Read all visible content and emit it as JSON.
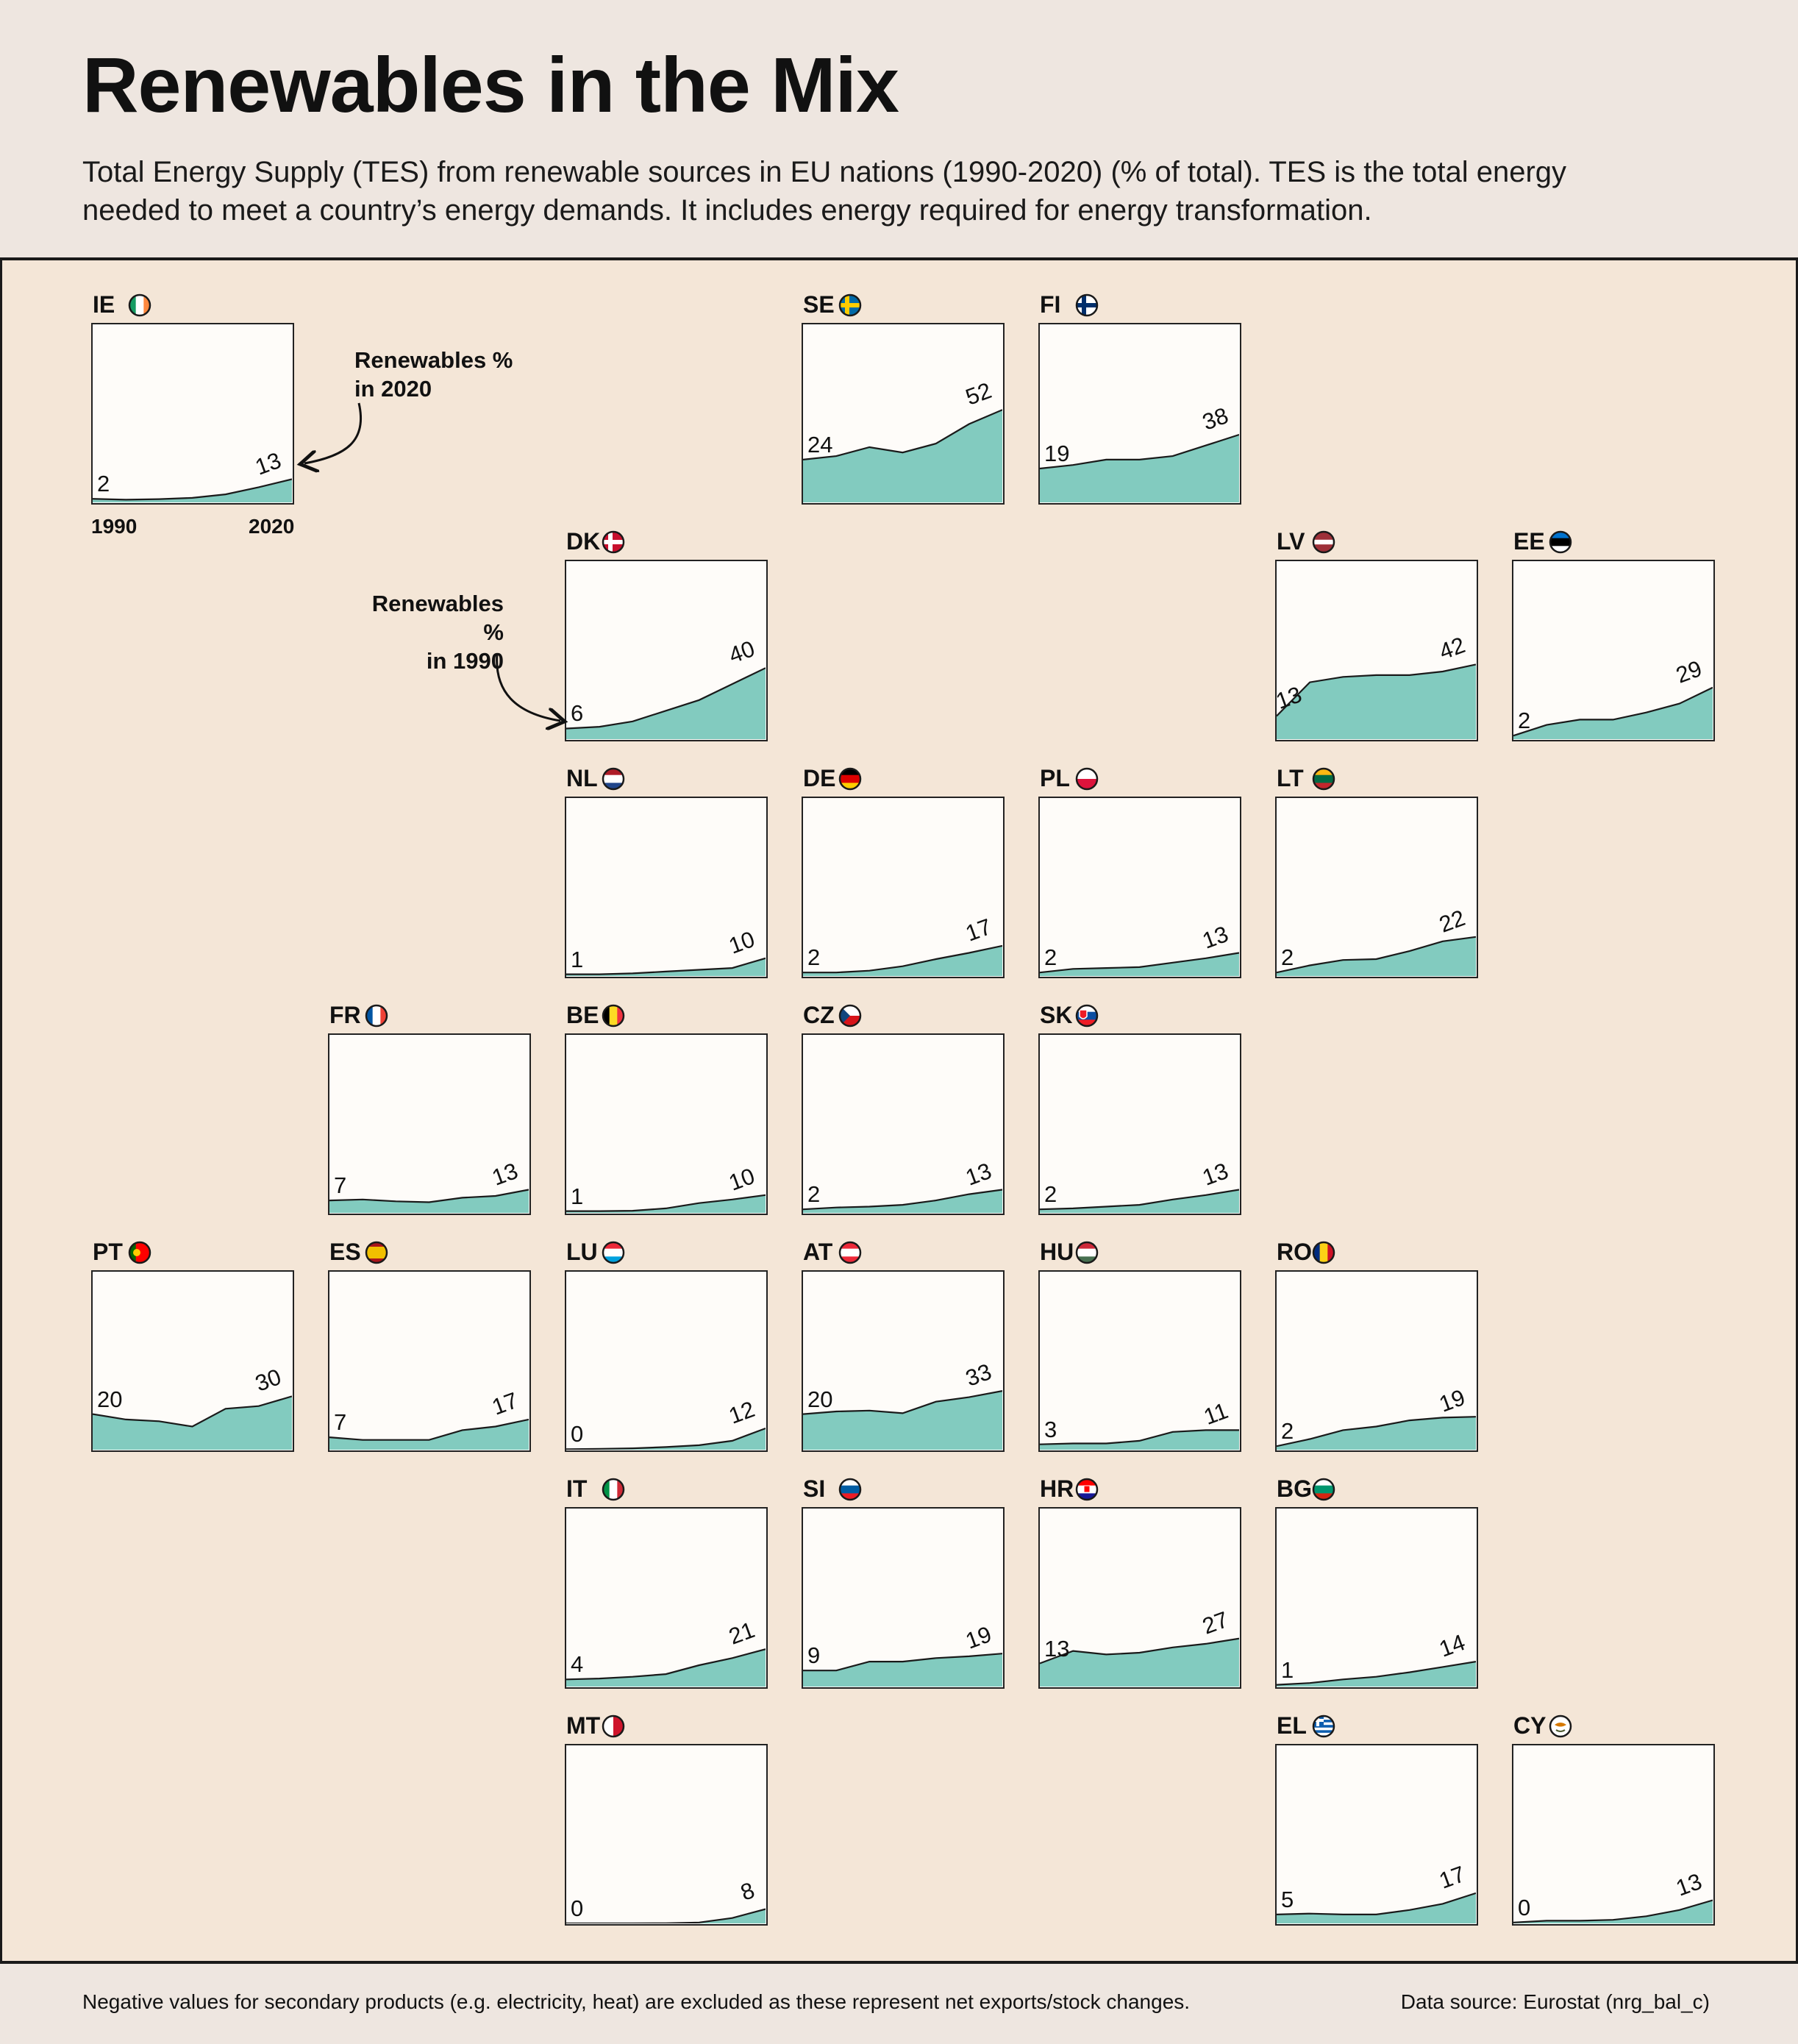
{
  "header": {
    "title": "Renewables in the Mix",
    "subtitle": "Total Energy Supply (TES) from renewable sources in EU nations (1990-2020) (% of total). TES is the total energy needed to meet a country’s energy demands. It includes energy required for energy transformation."
  },
  "annotations": {
    "renewables_2020": [
      "Renewables %",
      "in 2020"
    ],
    "renewables_1990": [
      "Renewables %",
      "in 1990"
    ],
    "year_start": "1990",
    "year_end": "2020"
  },
  "footer": {
    "note": "Negative values for secondary products (e.g. electricity, heat) are excluded as these represent net exports/stock changes.",
    "source": "Data source: Eurostat (nrg_bal_c)"
  },
  "colors": {
    "area": "#82cbbf",
    "panel": "#fefcf9",
    "background": "#f4e6d7",
    "header": "#eee6e0"
  },
  "chart_data": {
    "type": "area",
    "layout": "small-multiples",
    "x": [
      1990,
      1995,
      2000,
      2005,
      2010,
      2015,
      2020
    ],
    "ylim": [
      0,
      100
    ],
    "xlabel": "",
    "ylabel": "",
    "series": [
      {
        "name": "IE",
        "flag": "ireland",
        "row": 0,
        "col": 0,
        "start_label": "2",
        "end_label": "13",
        "values": [
          2,
          1.5,
          1.8,
          2.5,
          4.5,
          8.5,
          13
        ]
      },
      {
        "name": "SE",
        "flag": "sweden",
        "row": 0,
        "col": 3,
        "start_label": "24",
        "end_label": "52",
        "values": [
          24,
          26,
          31,
          28,
          33,
          44,
          52
        ]
      },
      {
        "name": "FI",
        "flag": "finland",
        "row": 0,
        "col": 4,
        "start_label": "19",
        "end_label": "38",
        "values": [
          19,
          21,
          24,
          24,
          26,
          32,
          38
        ]
      },
      {
        "name": "DK",
        "flag": "denmark",
        "row": 1,
        "col": 2,
        "start_label": "6",
        "end_label": "40",
        "values": [
          6,
          7,
          10,
          16,
          22,
          31,
          40
        ]
      },
      {
        "name": "LV",
        "flag": "latvia",
        "row": 1,
        "col": 5,
        "start_label": "13",
        "end_label": "42",
        "values": [
          13,
          32,
          35,
          36,
          36,
          38,
          42
        ]
      },
      {
        "name": "EE",
        "flag": "estonia",
        "row": 1,
        "col": 6,
        "start_label": "2",
        "end_label": "29",
        "values": [
          2,
          8,
          11,
          11,
          15,
          20,
          29
        ]
      },
      {
        "name": "NL",
        "flag": "netherlands",
        "row": 2,
        "col": 2,
        "start_label": "1",
        "end_label": "10",
        "values": [
          1,
          1,
          1.5,
          2.5,
          3.5,
          4.5,
          10
        ]
      },
      {
        "name": "DE",
        "flag": "germany",
        "row": 2,
        "col": 3,
        "start_label": "2",
        "end_label": "17",
        "values": [
          2,
          2,
          3,
          5.5,
          9.5,
          13,
          17
        ]
      },
      {
        "name": "PL",
        "flag": "poland",
        "row": 2,
        "col": 4,
        "start_label": "2",
        "end_label": "13",
        "values": [
          2,
          4,
          4.5,
          5,
          7.5,
          10,
          13
        ]
      },
      {
        "name": "LT",
        "flag": "lithuania",
        "row": 2,
        "col": 5,
        "start_label": "2",
        "end_label": "22",
        "values": [
          2,
          6,
          9,
          9.5,
          14,
          19.5,
          22
        ]
      },
      {
        "name": "FR",
        "flag": "france",
        "row": 3,
        "col": 1,
        "start_label": "7",
        "end_label": "13",
        "values": [
          7,
          7.5,
          6.5,
          6,
          8.5,
          9.5,
          13
        ]
      },
      {
        "name": "BE",
        "flag": "belgium",
        "row": 3,
        "col": 2,
        "start_label": "1",
        "end_label": "10",
        "values": [
          1,
          1,
          1.2,
          2.5,
          5.5,
          7.5,
          10
        ]
      },
      {
        "name": "CZ",
        "flag": "czechia",
        "row": 3,
        "col": 3,
        "start_label": "2",
        "end_label": "13",
        "values": [
          2,
          3,
          3.5,
          4.5,
          7,
          10.5,
          13
        ]
      },
      {
        "name": "SK",
        "flag": "slovakia",
        "row": 3,
        "col": 4,
        "start_label": "2",
        "end_label": "13",
        "values": [
          2,
          2.5,
          3.5,
          4.5,
          7.5,
          10,
          13
        ]
      },
      {
        "name": "PT",
        "flag": "portugal",
        "row": 4,
        "col": 0,
        "start_label": "20",
        "end_label": "30",
        "values": [
          20,
          17,
          16,
          13,
          23,
          24.5,
          30
        ]
      },
      {
        "name": "ES",
        "flag": "spain",
        "row": 4,
        "col": 1,
        "start_label": "7",
        "end_label": "17",
        "values": [
          7,
          5.5,
          5.5,
          5.5,
          11,
          13,
          17
        ]
      },
      {
        "name": "LU",
        "flag": "luxembourg",
        "row": 4,
        "col": 2,
        "start_label": "0",
        "end_label": "12",
        "values": [
          0.3,
          0.5,
          0.8,
          1.5,
          2.5,
          5,
          12
        ]
      },
      {
        "name": "AT",
        "flag": "austria",
        "row": 4,
        "col": 3,
        "start_label": "20",
        "end_label": "33",
        "values": [
          20,
          21.5,
          22,
          20.5,
          27,
          29.5,
          33
        ]
      },
      {
        "name": "HU",
        "flag": "hungary",
        "row": 4,
        "col": 4,
        "start_label": "3",
        "end_label": "11",
        "values": [
          3,
          3.5,
          3.5,
          5,
          10,
          11,
          11
        ]
      },
      {
        "name": "RO",
        "flag": "romania",
        "row": 4,
        "col": 5,
        "start_label": "2",
        "end_label": "19",
        "values": [
          2,
          6,
          11,
          13,
          16.5,
          18,
          18.5
        ]
      },
      {
        "name": "IT",
        "flag": "italy",
        "row": 5,
        "col": 2,
        "start_label": "4",
        "end_label": "21",
        "values": [
          4,
          4.5,
          5.5,
          7,
          12,
          16,
          21
        ]
      },
      {
        "name": "SI",
        "flag": "slovenia",
        "row": 5,
        "col": 3,
        "start_label": "9",
        "end_label": "19",
        "values": [
          9,
          9,
          14,
          14,
          16,
          17,
          18.5
        ]
      },
      {
        "name": "HR",
        "flag": "croatia",
        "row": 5,
        "col": 4,
        "start_label": "13",
        "end_label": "27",
        "values": [
          13,
          20,
          18,
          19,
          22,
          24,
          27
        ]
      },
      {
        "name": "BG",
        "flag": "bulgaria",
        "row": 5,
        "col": 5,
        "start_label": "1",
        "end_label": "14",
        "values": [
          1,
          2,
          4,
          5.5,
          8,
          11,
          14
        ]
      },
      {
        "name": "MT",
        "flag": "malta",
        "row": 6,
        "col": 2,
        "start_label": "0",
        "end_label": "8",
        "values": [
          0,
          0,
          0,
          0.1,
          0.5,
          3,
          8
        ]
      },
      {
        "name": "EL",
        "flag": "greece",
        "row": 6,
        "col": 5,
        "start_label": "5",
        "end_label": "17",
        "values": [
          5,
          5.5,
          5,
          5,
          7.5,
          11,
          17
        ]
      },
      {
        "name": "CY",
        "flag": "cyprus",
        "row": 6,
        "col": 6,
        "start_label": "0",
        "end_label": "13",
        "values": [
          0.5,
          1.5,
          1.5,
          2,
          4,
          7.5,
          13
        ]
      }
    ]
  }
}
